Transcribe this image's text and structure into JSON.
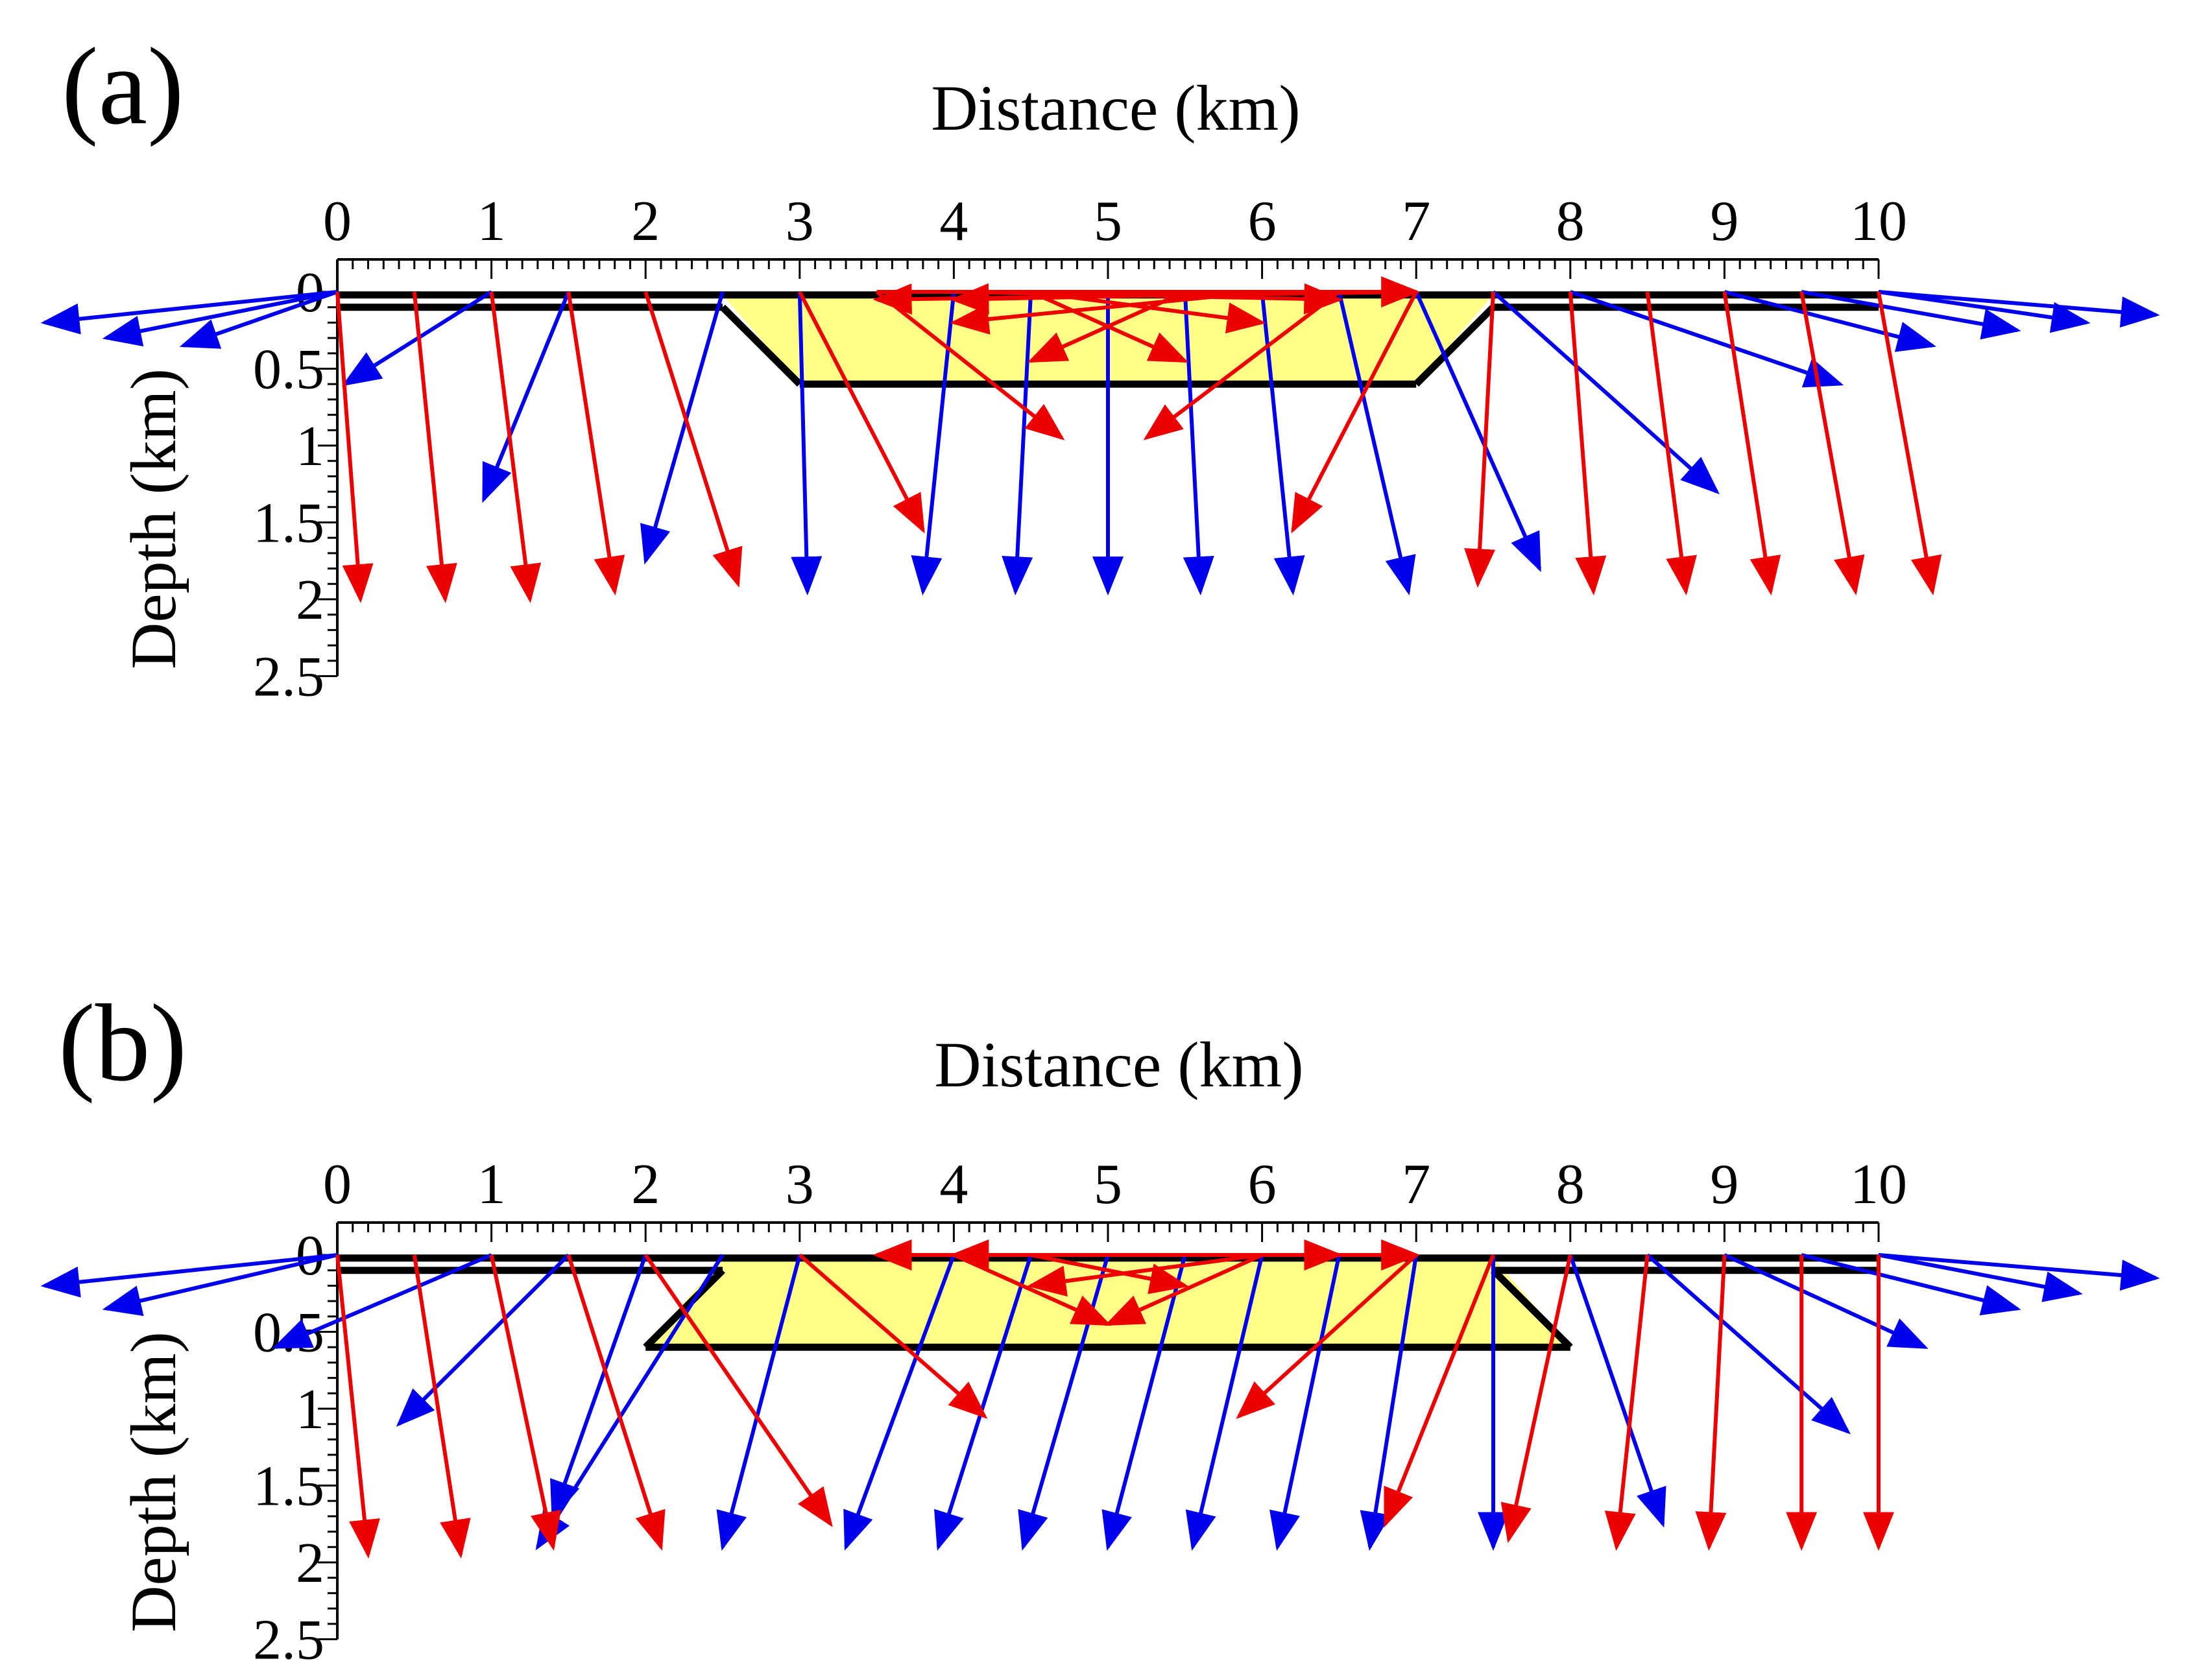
{
  "figure": {
    "panels": [
      {
        "label": "(a)",
        "xlabel": "Distance (km)",
        "ylabel": "Depth (km)",
        "x_ticks": [
          "0",
          "1",
          "2",
          "3",
          "4",
          "5",
          "6",
          "7",
          "8",
          "9",
          "10"
        ],
        "y_ticks": [
          "0",
          "0.5",
          "1",
          "1.5",
          "2",
          "2.5"
        ],
        "xlim": [
          0,
          10
        ],
        "ylim": [
          0,
          2.5
        ],
        "layer": {
          "top_depth_km": 0.1,
          "boundary_depth_km": 0.6,
          "top_span_km": [
            2.5,
            7.5
          ],
          "bottom_span_km": [
            3.0,
            7.0
          ],
          "fill_color": "#ffff88",
          "line_color": "#000000"
        },
        "blue_arrows": [
          [
            0,
            0,
            -1.9,
            0.2
          ],
          [
            0,
            0,
            -1.5,
            0.3
          ],
          [
            0,
            0,
            -1.0,
            0.35
          ],
          [
            1,
            0,
            0.05,
            0.6
          ],
          [
            1.5,
            0,
            0.95,
            1.35
          ],
          [
            2.5,
            0,
            2.0,
            1.75
          ],
          [
            3,
            0,
            3.05,
            1.95
          ],
          [
            4,
            0,
            3.8,
            1.95
          ],
          [
            4.5,
            0,
            4.4,
            1.95
          ],
          [
            5,
            0,
            5.0,
            1.95
          ],
          [
            5.5,
            0,
            5.6,
            1.95
          ],
          [
            6,
            0,
            6.2,
            1.95
          ],
          [
            6.5,
            0,
            6.95,
            1.95
          ],
          [
            7,
            0,
            7.8,
            1.8
          ],
          [
            7.5,
            0,
            8.95,
            1.3
          ],
          [
            8,
            0,
            9.75,
            0.6
          ],
          [
            9,
            0,
            10.35,
            0.35
          ],
          [
            9.5,
            0,
            10.9,
            0.25
          ],
          [
            10,
            0,
            11.35,
            0.2
          ],
          [
            10,
            0,
            11.8,
            0.15
          ]
        ],
        "red_arrows": [
          [
            0,
            0,
            0.15,
            2.0
          ],
          [
            0.5,
            0,
            0.7,
            2.0
          ],
          [
            1,
            0,
            1.25,
            2.0
          ],
          [
            1.5,
            0,
            1.8,
            1.95
          ],
          [
            2,
            0,
            2.6,
            1.9
          ],
          [
            3,
            0,
            3.8,
            1.55
          ],
          [
            3.5,
            0,
            4.7,
            0.95
          ],
          [
            6.5,
            0,
            5.25,
            0.95
          ],
          [
            7,
            0,
            6.2,
            1.55
          ],
          [
            7.5,
            0,
            7.4,
            1.9
          ],
          [
            8,
            0,
            8.15,
            1.95
          ],
          [
            8.5,
            0,
            8.75,
            1.95
          ],
          [
            9,
            0,
            9.3,
            1.95
          ],
          [
            9.5,
            0,
            9.85,
            1.95
          ],
          [
            10,
            0,
            10.35,
            1.95
          ],
          [
            7,
            0,
            3.5,
            0.05
          ],
          [
            3.5,
            0,
            7,
            0.0
          ],
          [
            4,
            0,
            6.5,
            0.05
          ],
          [
            6.5,
            0,
            4,
            0.05
          ],
          [
            4.5,
            0,
            6,
            0.2
          ],
          [
            6,
            0,
            4,
            0.2
          ],
          [
            4.5,
            0,
            5.5,
            0.45
          ],
          [
            5.5,
            0,
            4.5,
            0.45
          ]
        ]
      },
      {
        "label": "(b)",
        "xlabel": "Distance (km)",
        "ylabel": "Depth (km)",
        "x_ticks": [
          "0",
          "1",
          "2",
          "3",
          "4",
          "5",
          "6",
          "7",
          "8",
          "9",
          "10"
        ],
        "y_ticks": [
          "0",
          "0.5",
          "1",
          "1.5",
          "2",
          "2.5"
        ],
        "xlim": [
          0,
          10
        ],
        "ylim": [
          0,
          2.5
        ],
        "layer": {
          "top_depth_km": 0.1,
          "boundary_depth_km": 0.6,
          "top_span_km": [
            2.5,
            7.5
          ],
          "bottom_span_km": [
            2.0,
            8.0
          ],
          "fill_color": "#ffff88",
          "line_color": "#000000"
        },
        "blue_arrows": [
          [
            0,
            0,
            -1.9,
            0.2
          ],
          [
            0,
            0,
            -1.5,
            0.35
          ],
          [
            1,
            0,
            -0.4,
            0.6
          ],
          [
            1.5,
            0,
            0.4,
            1.1
          ],
          [
            2,
            0,
            1.4,
            1.7
          ],
          [
            2.5,
            0,
            1.3,
            1.9
          ],
          [
            3,
            0,
            2.5,
            1.9
          ],
          [
            4,
            0,
            3.3,
            1.9
          ],
          [
            4.5,
            0,
            3.9,
            1.9
          ],
          [
            5,
            0,
            4.45,
            1.9
          ],
          [
            5.5,
            0,
            5.0,
            1.9
          ],
          [
            6,
            0,
            5.55,
            1.9
          ],
          [
            6.5,
            0,
            6.1,
            1.9
          ],
          [
            7,
            0,
            6.7,
            1.9
          ],
          [
            7.5,
            0,
            7.5,
            1.9
          ],
          [
            8,
            0,
            8.6,
            1.75
          ],
          [
            8.5,
            0,
            9.8,
            1.15
          ],
          [
            9,
            0,
            10.3,
            0.6
          ],
          [
            9.5,
            0,
            10.9,
            0.35
          ],
          [
            10,
            0,
            11.3,
            0.25
          ],
          [
            10,
            0,
            11.8,
            0.15
          ]
        ],
        "red_arrows": [
          [
            0,
            0,
            0.2,
            1.95
          ],
          [
            0.5,
            0,
            0.8,
            1.95
          ],
          [
            1,
            0,
            1.4,
            1.9
          ],
          [
            1.5,
            0,
            2.1,
            1.9
          ],
          [
            2,
            0,
            3.2,
            1.75
          ],
          [
            3,
            0,
            4.2,
            1.05
          ],
          [
            7,
            0,
            5.85,
            1.05
          ],
          [
            7.5,
            0,
            6.8,
            1.75
          ],
          [
            8,
            0,
            7.6,
            1.85
          ],
          [
            8.5,
            0,
            8.3,
            1.9
          ],
          [
            9,
            0,
            8.9,
            1.9
          ],
          [
            9.5,
            0,
            9.5,
            1.9
          ],
          [
            10,
            0,
            10.0,
            1.9
          ],
          [
            7,
            0,
            3.5,
            0.0
          ],
          [
            3.5,
            0,
            7,
            0.0
          ],
          [
            4,
            0,
            6.5,
            0.0
          ],
          [
            6.5,
            0,
            4,
            0.0
          ],
          [
            4.5,
            0,
            5.5,
            0.2
          ],
          [
            6,
            0,
            4.5,
            0.2
          ],
          [
            4,
            0,
            5,
            0.45
          ],
          [
            6,
            0,
            5,
            0.45
          ]
        ]
      }
    ],
    "arrow_colors": {
      "blue": "#0000ee",
      "red": "#ee0000"
    }
  }
}
